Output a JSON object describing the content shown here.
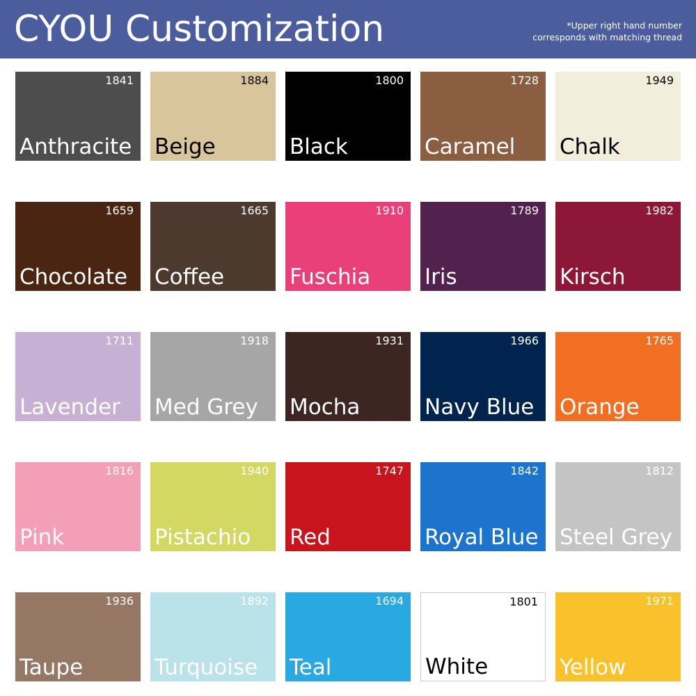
{
  "header": {
    "title": "CYOU Customization",
    "note_line1": "*Upper right hand number",
    "note_line2": "corresponds with matching thread",
    "background": "#4b5d9c"
  },
  "swatches": [
    {
      "name": "Anthracite",
      "number": "1841",
      "color": "#4d4d4d",
      "text": "#ffffff"
    },
    {
      "name": "Beige",
      "number": "1884",
      "color": "#d9c59b",
      "text": "#000000"
    },
    {
      "name": "Black",
      "number": "1800",
      "color": "#000000",
      "text": "#ffffff"
    },
    {
      "name": "Caramel",
      "number": "1728",
      "color": "#8b5e42",
      "text": "#ffffff"
    },
    {
      "name": "Chalk",
      "number": "1949",
      "color": "#f3eddc",
      "text": "#000000"
    },
    {
      "name": "Chocolate",
      "number": "1659",
      "color": "#4a2511",
      "text": "#ffffff"
    },
    {
      "name": "Coffee",
      "number": "1665",
      "color": "#4d3a2e",
      "text": "#ffffff"
    },
    {
      "name": "Fuschia",
      "number": "1910",
      "color": "#ea407a",
      "text": "#ffffff"
    },
    {
      "name": "Iris",
      "number": "1789",
      "color": "#52214e",
      "text": "#ffffff"
    },
    {
      "name": "Kirsch",
      "number": "1982",
      "color": "#8c1737",
      "text": "#ffffff"
    },
    {
      "name": "Lavender",
      "number": "1711",
      "color": "#c6b1d4",
      "text": "#ffffff"
    },
    {
      "name": "Med Grey",
      "number": "1918",
      "color": "#a6a6a6",
      "text": "#ffffff"
    },
    {
      "name": "Mocha",
      "number": "1931",
      "color": "#3d2522",
      "text": "#ffffff"
    },
    {
      "name": "Navy Blue",
      "number": "1966",
      "color": "#00244d",
      "text": "#ffffff"
    },
    {
      "name": "Orange",
      "number": "1765",
      "color": "#f06f22",
      "text": "#ffffff"
    },
    {
      "name": "Pink",
      "number": "1816",
      "color": "#f29fb7",
      "text": "#ffffff"
    },
    {
      "name": "Pistachio",
      "number": "1940",
      "color": "#d3d863",
      "text": "#ffffff"
    },
    {
      "name": "Red",
      "number": "1747",
      "color": "#c8141c",
      "text": "#ffffff"
    },
    {
      "name": "Royal Blue",
      "number": "1842",
      "color": "#1c74cc",
      "text": "#ffffff"
    },
    {
      "name": "Steel Grey",
      "number": "1812",
      "color": "#c4c4c4",
      "text": "#ffffff"
    },
    {
      "name": "Taupe",
      "number": "1936",
      "color": "#967764",
      "text": "#ffffff"
    },
    {
      "name": "Turquoise",
      "number": "1892",
      "color": "#bae2e9",
      "text": "#ffffff"
    },
    {
      "name": "Teal",
      "number": "1694",
      "color": "#29a9e1",
      "text": "#ffffff"
    },
    {
      "name": "White",
      "number": "1801",
      "color": "#ffffff",
      "text": "#000000",
      "border": "#cccccc"
    },
    {
      "name": "Yellow",
      "number": "1971",
      "color": "#f9c12c",
      "text": "#ffffff"
    }
  ]
}
